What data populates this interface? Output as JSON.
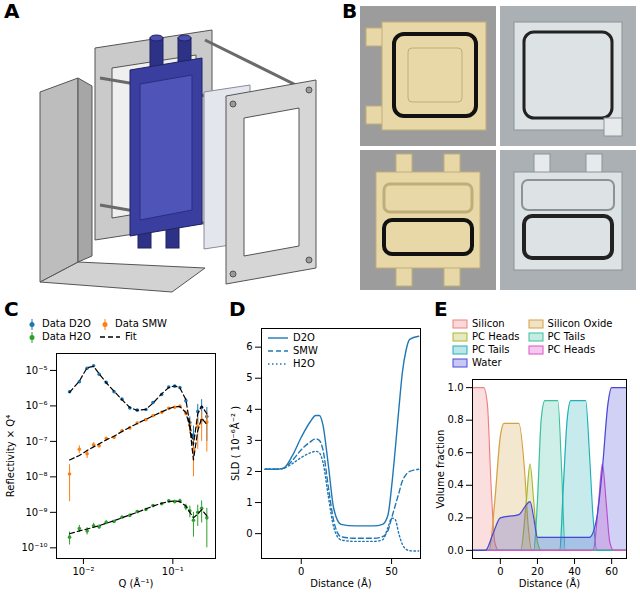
{
  "chart_data": [
    {
      "type": "image",
      "panel": "A"
    },
    {
      "type": "image",
      "panel": "B"
    },
    {
      "type": "scatter",
      "panel": "C",
      "xlabel": "Q (Å⁻¹)",
      "ylabel": "Reflectivity × Q⁴",
      "log": true,
      "legend": "top",
      "xlim": [
        0.005,
        0.3
      ],
      "ylim": [
        5e-11,
        3e-05
      ],
      "xticks": [
        {
          "value": 0.01,
          "label": "10⁻²"
        },
        {
          "value": 0.1,
          "label": "10⁻¹"
        }
      ],
      "yticks": [
        {
          "value": 1e-10,
          "label": "10⁻¹⁰"
        },
        {
          "value": 1e-09,
          "label": "10⁻⁹"
        },
        {
          "value": 1e-08,
          "label": "10⁻⁸"
        },
        {
          "value": 1e-07,
          "label": "10⁻⁷"
        },
        {
          "value": 1e-06,
          "label": "10⁻⁶"
        },
        {
          "value": 1e-05,
          "label": "10⁻⁵"
        }
      ],
      "x": [
        0.007,
        0.009,
        0.011,
        0.013,
        0.015,
        0.018,
        0.022,
        0.027,
        0.033,
        0.04,
        0.05,
        0.06,
        0.075,
        0.09,
        0.105,
        0.12,
        0.14,
        0.155,
        0.17,
        0.19,
        0.21,
        0.24
      ],
      "series": [
        {
          "name": "Data D2O",
          "color": "#1f77b4",
          "marker": "circle",
          "values": [
            2.5e-06,
            4.8e-06,
            1.15e-05,
            1.35e-05,
            7.8e-06,
            4.6e-06,
            2.5e-06,
            1.55e-06,
            8.8e-07,
            7.6e-07,
            7.9e-07,
            1.25e-06,
            2.1e-06,
            3.4e-06,
            3.6e-06,
            3.3e-06,
            1.4e-06,
            3.4e-07,
            1.5e-07,
            7e-07,
            9e-07,
            5e-07
          ],
          "yerr": [
            2e-07,
            2e-07,
            3e-07,
            3e-07,
            2e-07,
            1e-07,
            6e-08,
            4e-08,
            3e-08,
            3e-08,
            3e-08,
            4e-08,
            6e-08,
            1e-07,
            1.5e-07,
            2e-07,
            2e-07,
            1.5e-07,
            1.2e-07,
            4e-07,
            6e-07,
            4e-07
          ]
        },
        {
          "name": "Data SMW",
          "color": "#ff7f0e",
          "marker": "circle",
          "values": [
            1.2e-08,
            6e-08,
            4.5e-08,
            8e-08,
            7.5e-08,
            1.2e-07,
            1.3e-07,
            2e-07,
            2.4e-07,
            3.3e-07,
            4.1e-07,
            5.3e-07,
            6.6e-07,
            8.5e-07,
            9.2e-07,
            9.8e-07,
            6.2e-07,
            2.8e-07,
            6e-08,
            2.6e-07,
            4e-07,
            3.5e-07
          ],
          "yerr": [
            1e-08,
            1.5e-08,
            1.2e-08,
            1.2e-08,
            1e-08,
            1.2e-08,
            1.2e-08,
            1.5e-08,
            1.5e-08,
            1.8e-08,
            2e-08,
            2.5e-08,
            3e-08,
            4e-08,
            6e-08,
            8e-08,
            1e-07,
            1.2e-07,
            5e-08,
            2e-07,
            3e-07,
            3e-07
          ]
        },
        {
          "name": "Data H2O",
          "color": "#2ca02c",
          "marker": "circle",
          "values": [
            2e-10,
            3.5e-10,
            3e-10,
            4.2e-10,
            3.9e-10,
            5.2e-10,
            5.5e-10,
            7.3e-10,
            8.2e-10,
            1.05e-09,
            1.2e-09,
            1.55e-09,
            1.75e-09,
            2.1e-09,
            2e-09,
            2.1e-09,
            1.4e-09,
            1.1e-09,
            6e-10,
            1e-09,
            1.3e-09,
            7e-10
          ],
          "yerr": [
            8e-11,
            8e-11,
            7e-11,
            7e-11,
            6e-11,
            6e-11,
            6e-11,
            6e-11,
            7e-11,
            8e-11,
            9e-11,
            1e-10,
            1.2e-10,
            1.5e-10,
            2e-10,
            2.5e-10,
            3e-10,
            4e-10,
            4e-10,
            6e-10,
            8e-10,
            6e-10
          ]
        },
        {
          "name": "Fit",
          "type": "line",
          "color": "#000000",
          "line_style": "dashed",
          "x": [
            0.007,
            0.009,
            0.011,
            0.013,
            0.015,
            0.018,
            0.022,
            0.027,
            0.033,
            0.04,
            0.05,
            0.06,
            0.075,
            0.09,
            0.105,
            0.12,
            0.14,
            0.155,
            0.17,
            0.19,
            0.21,
            0.24,
            0.24,
            0.007,
            0.009,
            0.011,
            0.013,
            0.015,
            0.018,
            0.022,
            0.027,
            0.033,
            0.04,
            0.05,
            0.06,
            0.075,
            0.09,
            0.105,
            0.12,
            0.14,
            0.155,
            0.17,
            0.19,
            0.21,
            0.24,
            0.24,
            0.007,
            0.009,
            0.011,
            0.013,
            0.015,
            0.018,
            0.022,
            0.027,
            0.033,
            0.04,
            0.05,
            0.06,
            0.075,
            0.09,
            0.105,
            0.12,
            0.14,
            0.155,
            0.17,
            0.19,
            0.21,
            0.24
          ],
          "values": [
            2.4e-06,
            5e-06,
            1.2e-05,
            1.3e-05,
            8e-06,
            4.5e-06,
            2.6e-06,
            1.5e-06,
            9e-07,
            7.5e-07,
            8e-07,
            1.2e-06,
            2.2e-06,
            3.3e-06,
            3.7e-06,
            3.2e-06,
            1.5e-06,
            3e-07,
            8e-08,
            6e-07,
            1e-06,
            6e-07,
            null,
            3e-08,
            4e-08,
            5.5e-08,
            7e-08,
            8.5e-08,
            1.1e-07,
            1.4e-07,
            1.9e-07,
            2.5e-07,
            3.2e-07,
            4.2e-07,
            5.2e-07,
            6.8e-07,
            8.3e-07,
            9.5e-07,
            9.5e-07,
            6.5e-07,
            2.5e-07,
            3e-08,
            2e-07,
            4.5e-07,
            3e-07,
            null,
            2.5e-10,
            3e-10,
            3.4e-10,
            3.8e-10,
            4.2e-10,
            4.9e-10,
            5.8e-10,
            7e-10,
            8.5e-10,
            1e-09,
            1.25e-09,
            1.5e-09,
            1.8e-09,
            2e-09,
            2.1e-09,
            2e-09,
            1.5e-09,
            1e-09,
            7e-10,
            9e-10,
            1.2e-09,
            8e-10
          ]
        }
      ]
    },
    {
      "type": "line",
      "panel": "D",
      "xlabel": "Distance (Å)",
      "ylabel": "SLD ( 10⁻⁶Å⁻² )",
      "legend": "top-left",
      "xlim": [
        -22,
        66
      ],
      "ylim": [
        -0.8,
        6.6
      ],
      "xticks": [
        0,
        50
      ],
      "yticks": [
        0,
        1,
        2,
        3,
        4,
        5,
        6
      ],
      "x": [
        -20,
        -15,
        -10,
        -5,
        0,
        5,
        8,
        10,
        12,
        15,
        18,
        22,
        30,
        40,
        45,
        48,
        50,
        52,
        54,
        56,
        58,
        60,
        65
      ],
      "series": [
        {
          "name": "D2O",
          "color": "#1f77b4",
          "line_style": "solid",
          "values": [
            2.07,
            2.07,
            2.1,
            2.5,
            3.1,
            3.6,
            3.8,
            3.8,
            3.5,
            2.2,
            0.8,
            0.3,
            0.25,
            0.25,
            0.3,
            0.6,
            1.5,
            2.7,
            4.0,
            5.2,
            5.9,
            6.25,
            6.35
          ]
        },
        {
          "name": "SMW",
          "color": "#1f77b4",
          "line_style": "dashed",
          "values": [
            2.07,
            2.07,
            2.1,
            2.35,
            2.7,
            2.95,
            3.05,
            3.0,
            2.7,
            1.5,
            0.4,
            -0.1,
            -0.15,
            -0.15,
            -0.1,
            0.1,
            0.5,
            0.9,
            1.3,
            1.7,
            1.9,
            2.0,
            2.07
          ]
        },
        {
          "name": "H2O",
          "color": "#1f77b4",
          "line_style": "dotted",
          "values": [
            2.07,
            2.07,
            2.1,
            2.25,
            2.45,
            2.6,
            2.65,
            2.6,
            2.3,
            1.2,
            0.2,
            -0.2,
            -0.25,
            -0.25,
            -0.2,
            0.2,
            0.5,
            0.45,
            0.0,
            -0.35,
            -0.5,
            -0.55,
            -0.56
          ]
        }
      ]
    },
    {
      "type": "area",
      "panel": "E",
      "xlabel": "Distance (Å)",
      "ylabel": "Volume fraction",
      "legend": "top",
      "xlim": [
        -15,
        68
      ],
      "ylim": [
        -0.05,
        1.05
      ],
      "xticks": [
        0,
        20,
        40,
        60
      ],
      "yticks": [
        {
          "value": 0,
          "label": "0.0"
        },
        0.2,
        0.4,
        0.6,
        0.8,
        {
          "value": 1,
          "label": "1.0"
        }
      ],
      "series": [
        {
          "name": "Silicon",
          "color": "#f08080",
          "x": [
            -15,
            -9,
            -7,
            -5,
            -3,
            -1,
            68
          ],
          "values": [
            1,
            1,
            0.9,
            0.4,
            0.05,
            0,
            0
          ]
        },
        {
          "name": "Silicon Oxide",
          "color": "#d4a040",
          "x": [
            -15,
            -6,
            -3,
            0,
            2,
            10,
            13,
            15,
            17,
            68
          ],
          "values": [
            0,
            0,
            0.3,
            0.7,
            0.78,
            0.78,
            0.5,
            0.15,
            0,
            0
          ]
        },
        {
          "name": "PC Heads",
          "color": "#a8b830",
          "x": [
            -15,
            11,
            14,
            16,
            18,
            20,
            22,
            68
          ],
          "values": [
            0,
            0,
            0.3,
            0.53,
            0.3,
            0.05,
            0,
            0
          ]
        },
        {
          "name": "PC Tails",
          "color": "#3cc0a0",
          "x": [
            -15,
            18,
            20,
            22,
            24,
            31,
            33,
            35,
            68
          ],
          "values": [
            0,
            0,
            0.3,
            0.8,
            0.92,
            0.92,
            0.5,
            0,
            0
          ]
        },
        {
          "name": "PC Tails",
          "color": "#20b0b8",
          "x": [
            -15,
            32,
            34,
            36,
            38,
            46,
            48,
            50,
            52,
            68
          ],
          "values": [
            0,
            0,
            0.4,
            0.8,
            0.92,
            0.92,
            0.6,
            0.2,
            0,
            0
          ]
        },
        {
          "name": "PC Heads",
          "color": "#e050c8",
          "x": [
            -15,
            50,
            53,
            55,
            57,
            59,
            61,
            68
          ],
          "values": [
            0,
            0,
            0.3,
            0.53,
            0.3,
            0.05,
            0,
            0
          ]
        },
        {
          "name": "Water",
          "color": "#4848d8",
          "x": [
            -15,
            -8,
            -4,
            0,
            10,
            14,
            16,
            18,
            20,
            48,
            52,
            55,
            58,
            60,
            68
          ],
          "values": [
            0,
            0,
            0.1,
            0.2,
            0.22,
            0.28,
            0.3,
            0.2,
            0.08,
            0.08,
            0.2,
            0.5,
            0.9,
            1,
            1
          ]
        }
      ]
    }
  ]
}
